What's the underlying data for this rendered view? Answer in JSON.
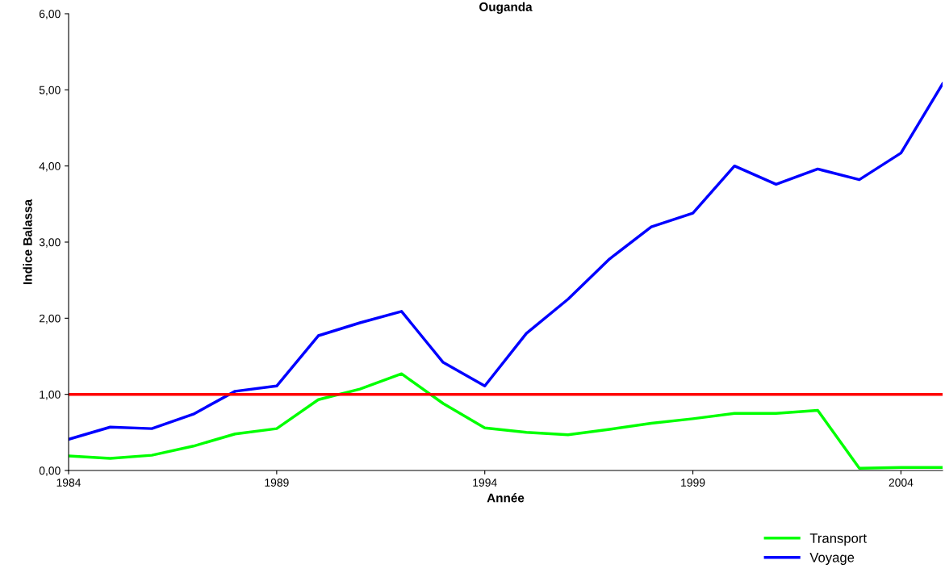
{
  "chart_data": {
    "type": "line",
    "title": "Ouganda",
    "xlabel": "Année",
    "ylabel": "Indice Balassa",
    "x": [
      1984,
      1985,
      1986,
      1987,
      1988,
      1989,
      1990,
      1991,
      1992,
      1993,
      1994,
      1995,
      1996,
      1997,
      1998,
      1999,
      2000,
      2001,
      2002,
      2003,
      2004,
      2005
    ],
    "series": [
      {
        "name": "Transport",
        "color": "#00ff00",
        "values": [
          0.19,
          0.16,
          0.2,
          0.32,
          0.48,
          0.55,
          0.93,
          1.07,
          1.27,
          0.88,
          0.56,
          0.5,
          0.47,
          0.54,
          0.62,
          0.68,
          0.75,
          0.75,
          0.79,
          0.03,
          0.04,
          0.04
        ]
      },
      {
        "name": "Voyage",
        "color": "#0000ff",
        "values": [
          0.41,
          0.57,
          0.55,
          0.74,
          1.04,
          1.11,
          1.77,
          1.94,
          2.09,
          1.42,
          1.11,
          1.8,
          2.25,
          2.78,
          3.2,
          3.38,
          4.0,
          3.76,
          3.96,
          3.82,
          4.17,
          5.08
        ]
      }
    ],
    "ref_lines": [
      {
        "axis": "y",
        "value": 1,
        "color": "#ff0000"
      }
    ],
    "xlim": [
      1984,
      2005
    ],
    "xticks": [
      1984,
      1989,
      1994,
      1999,
      2004
    ],
    "ylim": [
      0,
      6
    ],
    "yticks": [
      {
        "value": 0,
        "label": "0,00"
      },
      {
        "value": 1,
        "label": "1,00"
      },
      {
        "value": 2,
        "label": "2,00"
      },
      {
        "value": 3,
        "label": "3,00"
      },
      {
        "value": 4,
        "label": "4,00"
      },
      {
        "value": 5,
        "label": "5,00"
      },
      {
        "value": 6,
        "label": "6,00"
      }
    ],
    "grid": false,
    "legend": "bottom right",
    "marker": "none",
    "line_style": "solid"
  }
}
